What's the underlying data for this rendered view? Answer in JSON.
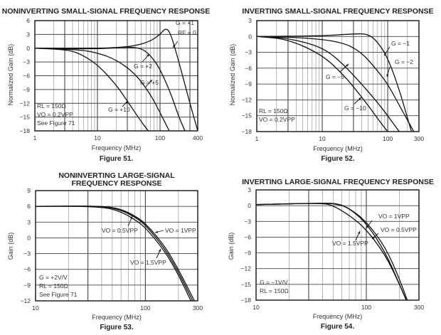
{
  "chart_data": [
    {
      "type": "line",
      "title": "NONINVERTING SMALL-SIGNAL FREQUENCY RESPONSE",
      "xlabel": "Frequency (MHz)",
      "ylabel": "Normalized Gain (dB)",
      "caption": "Figure 51.",
      "xscale": "log",
      "xlim": [
        1,
        400
      ],
      "ylim": [
        -18,
        6
      ],
      "xticks": [
        1,
        10,
        100,
        400
      ],
      "xtick_labels": [
        "1",
        "10",
        "100",
        "400"
      ],
      "yticks": [
        6,
        3,
        0,
        -3,
        -6,
        -9,
        -12,
        -15,
        -18
      ],
      "ytick_labels": [
        "6",
        "3",
        "0",
        "−3",
        "−6",
        "−9",
        "−12",
        "−15",
        "−18"
      ],
      "grid": true,
      "notes": [
        "RL = 150Ω",
        "VO = 0.2VPP",
        "See Figure 71"
      ],
      "annotations": [
        "G = +1",
        "RF = 0",
        "G = +2",
        "G = +5",
        "G = +10"
      ],
      "series": [
        {
          "name": "G = +1",
          "x": [
            1,
            10,
            20,
            40,
            70,
            100,
            125,
            150,
            200,
            300,
            400
          ],
          "y": [
            0,
            0,
            0.1,
            0.5,
            1.5,
            3,
            4.5,
            3,
            -3,
            -12,
            -18
          ]
        },
        {
          "name": "G = +2",
          "x": [
            1,
            10,
            30,
            50,
            70,
            100,
            150,
            200,
            250
          ],
          "y": [
            0,
            -0.2,
            0.3,
            0,
            -1.5,
            -4.5,
            -10,
            -15,
            -18
          ]
        },
        {
          "name": "G = +5",
          "x": [
            1,
            5,
            10,
            20,
            40,
            70,
            100,
            140
          ],
          "y": [
            0,
            -0.3,
            -1,
            -2.5,
            -5.5,
            -10,
            -14,
            -18
          ]
        },
        {
          "name": "G = +10",
          "x": [
            1,
            3,
            5,
            10,
            20,
            30,
            50,
            65
          ],
          "y": [
            0,
            -0.3,
            -1,
            -3.5,
            -8,
            -11.5,
            -16,
            -18
          ]
        }
      ]
    },
    {
      "type": "line",
      "title": "INVERTING SMALL-SIGNAL FREQUENCY RESPONSE",
      "xlabel": "Frequency (MHz)",
      "ylabel": "Normalized Gain (dB)",
      "caption": "Figure 52.",
      "xscale": "log",
      "xlim": [
        1,
        300
      ],
      "ylim": [
        -18,
        3
      ],
      "xticks": [
        1,
        10,
        100,
        300
      ],
      "xtick_labels": [
        "1",
        "10",
        "100",
        "300"
      ],
      "yticks": [
        3,
        0,
        -3,
        -6,
        -9,
        -12,
        -15,
        -18
      ],
      "ytick_labels": [
        "3",
        "0",
        "−3",
        "−6",
        "−9",
        "−12",
        "−15",
        "−18"
      ],
      "grid": true,
      "notes": [
        "RL = 150Ω",
        "VO = 0.2VPP"
      ],
      "annotations": [
        "G = −1",
        "G = −2",
        "G = −5",
        "G = −10"
      ],
      "series": [
        {
          "name": "G = −1",
          "x": [
            1,
            10,
            30,
            50,
            70,
            100,
            150,
            230
          ],
          "y": [
            0,
            0.1,
            0.5,
            0.5,
            -1,
            -4,
            -10,
            -18
          ]
        },
        {
          "name": "G = −2",
          "x": [
            1,
            5,
            20,
            40,
            70,
            100,
            150,
            250
          ],
          "y": [
            0,
            -0.2,
            -1,
            -3,
            -6.5,
            -9,
            -13,
            -18
          ]
        },
        {
          "name": "G = −5",
          "x": [
            1,
            3,
            10,
            20,
            40,
            70,
            100,
            150
          ],
          "y": [
            0,
            -0.3,
            -2,
            -5,
            -9,
            -12.5,
            -15,
            -18
          ]
        },
        {
          "name": "G = −10",
          "x": [
            1,
            3,
            10,
            20,
            30,
            50,
            80,
            100
          ],
          "y": [
            0,
            -0.5,
            -3.5,
            -7,
            -9.5,
            -13,
            -16.5,
            -18
          ]
        }
      ]
    },
    {
      "type": "line",
      "title": "NONINVERTING LARGE-SIGNAL\nFREQUENCY RESPONSE",
      "xlabel": "Frequency (MHz)",
      "ylabel": "Gain (dB)",
      "caption": "Figure 53.",
      "xscale": "log",
      "xlim": [
        10,
        300
      ],
      "ylim": [
        -12,
        9
      ],
      "xticks": [
        10,
        100,
        300
      ],
      "xtick_labels": [
        "10",
        "100",
        "300"
      ],
      "yticks": [
        9,
        6,
        3,
        0,
        -3,
        -6,
        -9,
        -12
      ],
      "ytick_labels": [
        "9",
        "6",
        "3",
        "0",
        "−3",
        "−6",
        "−9",
        "−12"
      ],
      "grid": true,
      "notes": [
        "G = +2V/V",
        "RL = 150Ω",
        "See Figure 71"
      ],
      "annotations": [
        "VO = 0.5VPP",
        "VO = 1VPP",
        "VO = 1.5VPP"
      ],
      "series": [
        {
          "name": "VO = 1VPP",
          "x": [
            10,
            40,
            60,
            80,
            100,
            150,
            200,
            280
          ],
          "y": [
            6,
            6.1,
            5.5,
            4.2,
            2.8,
            -1.5,
            -6,
            -12
          ]
        },
        {
          "name": "VO = 0.5VPP",
          "x": [
            10,
            40,
            60,
            80,
            100,
            150,
            200,
            270
          ],
          "y": [
            6,
            6.1,
            5.3,
            4,
            2.5,
            -2,
            -6.5,
            -12
          ]
        },
        {
          "name": "VO = 1.5VPP",
          "x": [
            10,
            40,
            60,
            80,
            100,
            150,
            200,
            260
          ],
          "y": [
            6,
            6,
            5,
            3.5,
            2,
            -2.5,
            -7,
            -12
          ]
        }
      ]
    },
    {
      "type": "line",
      "title": "INVERTING LARGE-SIGNAL FREQUENCY RESPONSE",
      "xlabel": "Frequency (MHz)",
      "ylabel": "Gain (dB)",
      "caption": "Figure 54.",
      "xscale": "log",
      "xlim": [
        10,
        300
      ],
      "ylim": [
        -18,
        3
      ],
      "xticks": [
        10,
        100,
        300
      ],
      "xtick_labels": [
        "10",
        "100",
        "300"
      ],
      "yticks": [
        3,
        0,
        -3,
        -6,
        -9,
        -12,
        -15,
        -18
      ],
      "ytick_labels": [
        "3",
        "0",
        "−3",
        "−6",
        "−9",
        "−12",
        "−15",
        "−18"
      ],
      "grid": true,
      "notes": [
        "G = −1V/V",
        "RL = 150Ω"
      ],
      "annotations": [
        "VO = 1VPP",
        "VO = 0.5VPP",
        "VO = 1.5VPP"
      ],
      "series": [
        {
          "name": "VO = 1VPP",
          "x": [
            10,
            40,
            55,
            70,
            100,
            150,
            200,
            235
          ],
          "y": [
            0.2,
            0.5,
            0.4,
            -0.5,
            -3,
            -8,
            -14,
            -18
          ]
        },
        {
          "name": "VO = 0.5VPP",
          "x": [
            10,
            40,
            55,
            70,
            100,
            150,
            200,
            230
          ],
          "y": [
            0.2,
            0.5,
            0.3,
            -0.5,
            -3.3,
            -9,
            -15,
            -18
          ]
        },
        {
          "name": "VO = 1.5VPP",
          "x": [
            10,
            40,
            50,
            70,
            100,
            150,
            200,
            230
          ],
          "y": [
            0.2,
            0.5,
            0,
            -1.8,
            -4.5,
            -9.5,
            -15,
            -18
          ]
        }
      ]
    }
  ]
}
